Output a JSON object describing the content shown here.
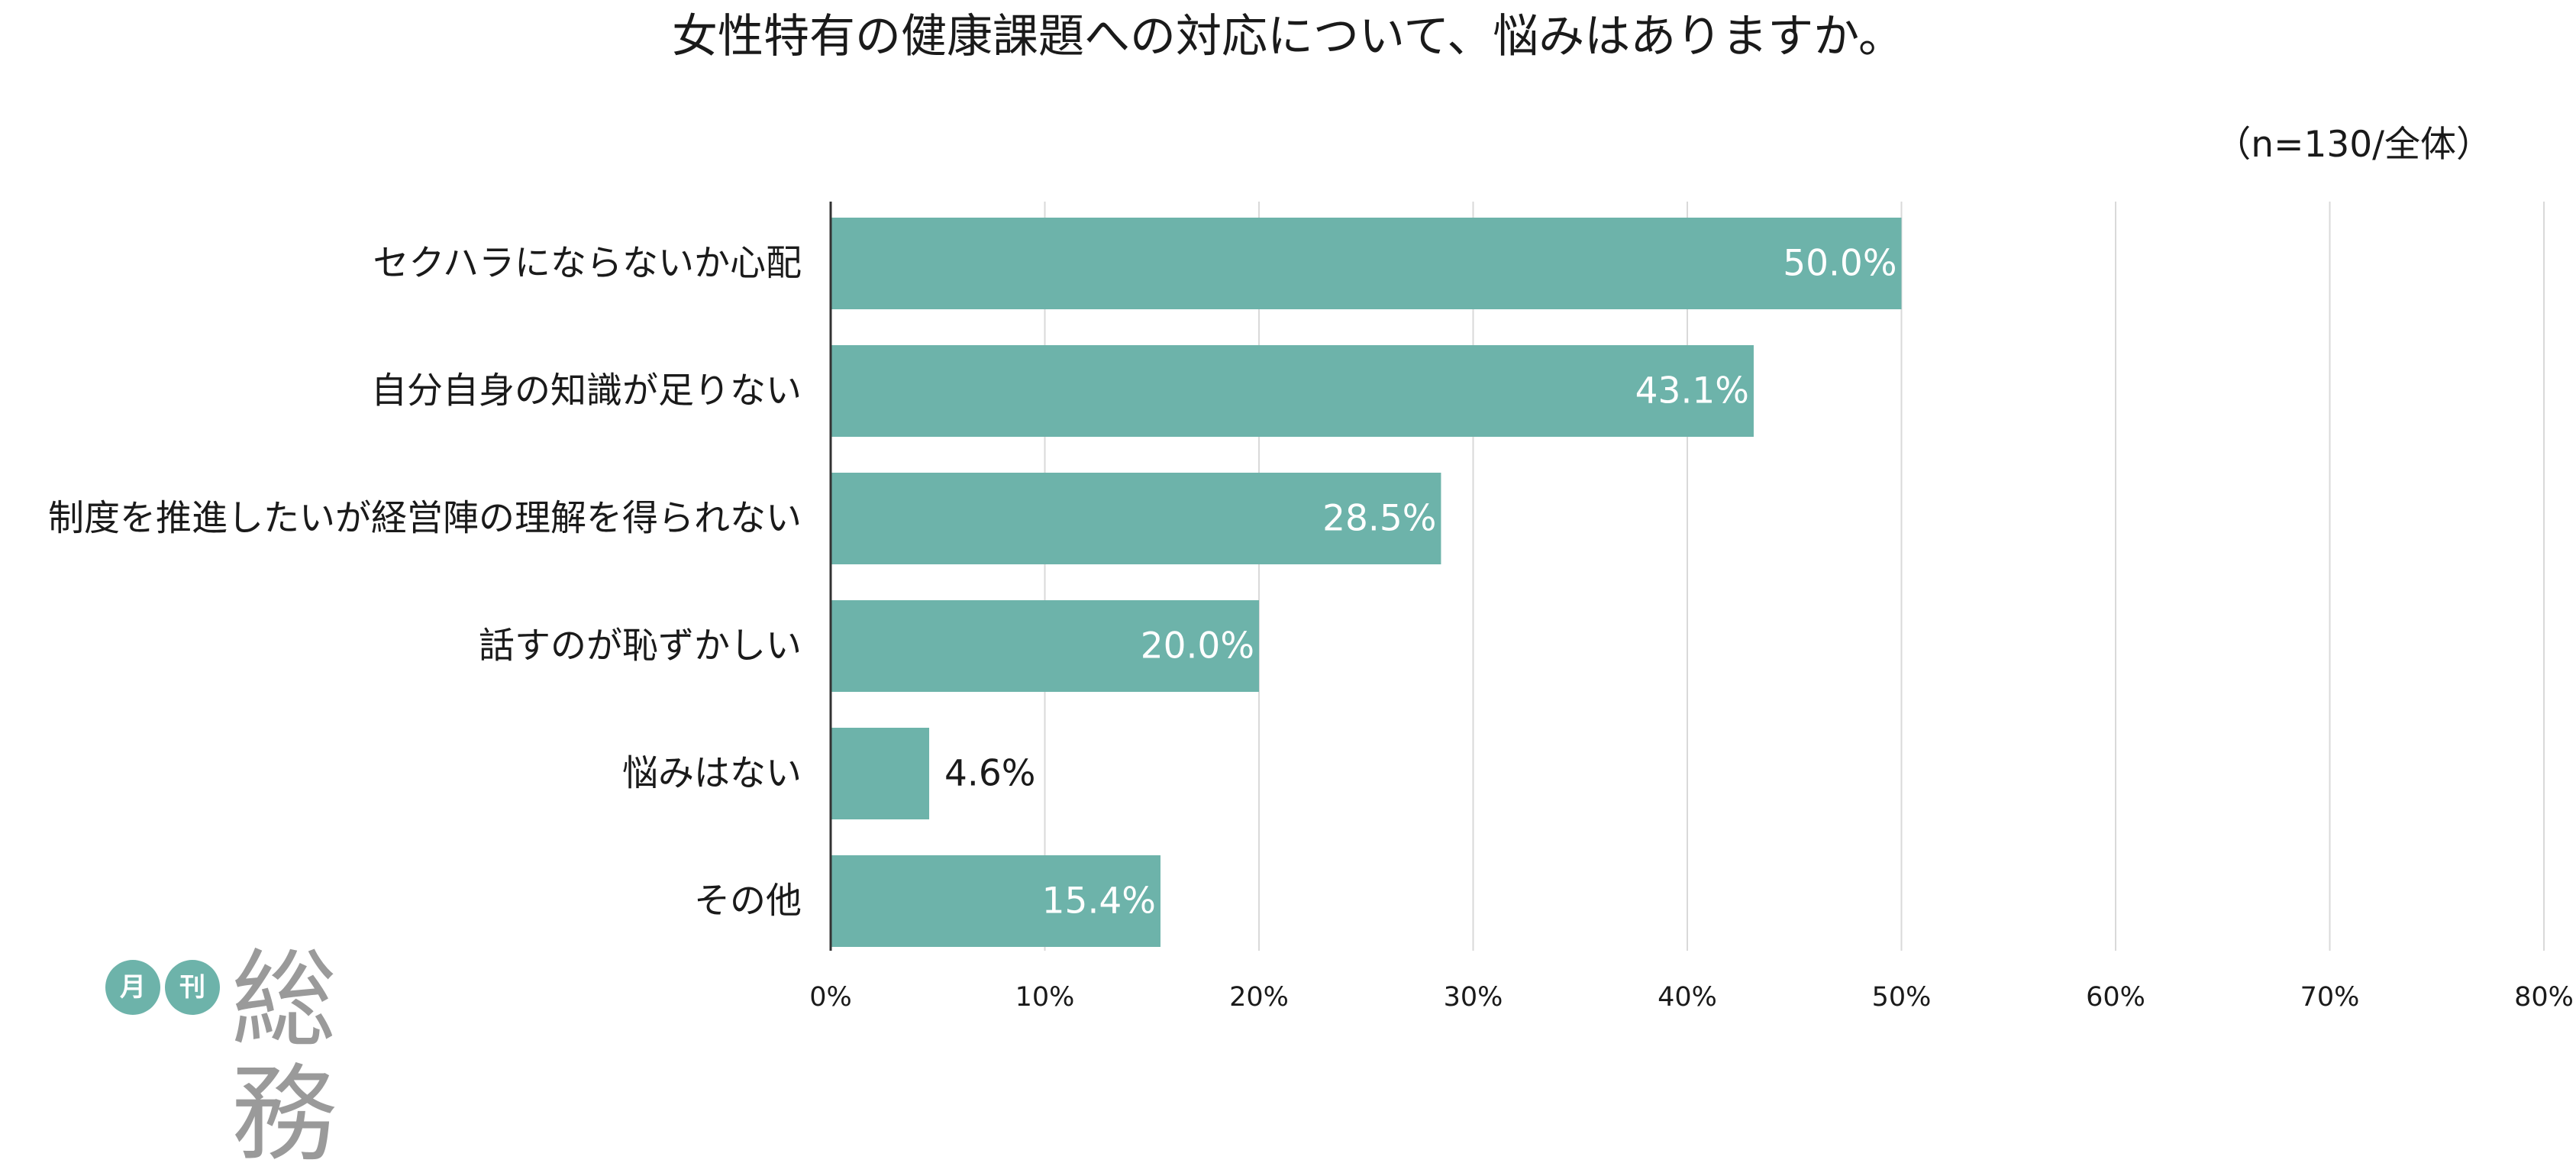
{
  "title": "女性特有の健康課題への対応について、悩みはありますか。",
  "sample_note": "（n=130/全体）",
  "logo": {
    "badge_1": "月",
    "badge_2": "刊",
    "word": "総務"
  },
  "colors": {
    "bar": "#6db3aa",
    "grid": "#d9d9d9",
    "axis": "#333333",
    "label_inside": "#ffffff",
    "label_outside": "#1a1a1a"
  },
  "chart_data": {
    "type": "bar",
    "orientation": "horizontal",
    "title": "女性特有の健康課題への対応について、悩みはありますか。",
    "categories": [
      "セクハラにならないか心配",
      "自分自身の知識が足りない",
      "制度を推進したいが経営陣の理解を得られない",
      "話すのが恥ずかしい",
      "悩みはない",
      "その他"
    ],
    "values": [
      50.0,
      43.1,
      28.5,
      20.0,
      4.6,
      15.4
    ],
    "value_labels": [
      "50.0%",
      "43.1%",
      "28.5%",
      "20.0%",
      "4.6%",
      "15.4%"
    ],
    "xlim": [
      0,
      80
    ],
    "xticks": [
      0,
      10,
      20,
      30,
      40,
      50,
      60,
      70,
      80
    ],
    "xtick_labels": [
      "0%",
      "10%",
      "20%",
      "30%",
      "40%",
      "50%",
      "60%",
      "70%",
      "80%"
    ],
    "grid": true,
    "legend": false
  }
}
